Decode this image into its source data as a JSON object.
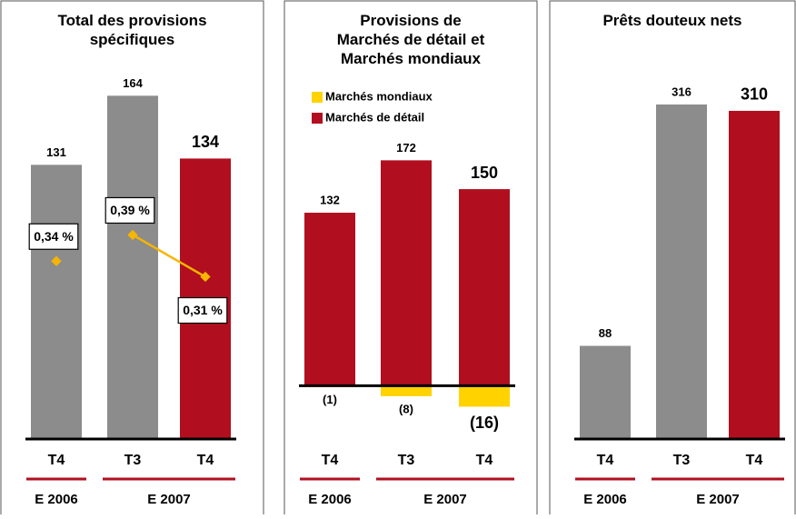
{
  "chart_data": [
    {
      "type": "bar",
      "title": "Total des provisions spécifiques",
      "categories": [
        "T4",
        "T3",
        "T4"
      ],
      "groups": [
        {
          "name": "E 2006",
          "size": 1
        },
        {
          "name": "E 2007",
          "size": 2
        }
      ],
      "values": [
        131,
        164,
        134
      ],
      "colors": [
        "#8c8c8c",
        "#8c8c8c",
        "#b10f1f"
      ],
      "ylim": [
        0,
        175
      ],
      "line": {
        "values": [
          0.34,
          0.39,
          0.31
        ],
        "value_labels": [
          "0,34 %",
          "0,39 %",
          "0,31 %"
        ],
        "color": "#f7b500",
        "axis": "y2"
      },
      "y2lim": [
        0,
        0.7
      ]
    },
    {
      "type": "stacked_bar",
      "title": "Provisions de Marchés de détail et Marchés mondiaux",
      "categories": [
        "T4",
        "T3",
        "T4"
      ],
      "groups": [
        {
          "name": "E 2006",
          "size": 1
        },
        {
          "name": "E 2007",
          "size": 2
        }
      ],
      "series": [
        {
          "name": "Marchés mondiaux",
          "color": "#ffd200",
          "values": [
            -1,
            -8,
            -16
          ],
          "value_labels": [
            "(1)",
            "(8)",
            "(16)"
          ]
        },
        {
          "name": "Marchés de détail",
          "color": "#b10f1f",
          "values": [
            132,
            172,
            150
          ]
        }
      ],
      "ylim": [
        -40,
        200
      ]
    },
    {
      "type": "bar",
      "title": "Prêts douteux nets",
      "categories": [
        "T4",
        "T3",
        "T4"
      ],
      "groups": [
        {
          "name": "E 2006",
          "size": 1
        },
        {
          "name": "E 2007",
          "size": 2
        }
      ],
      "values": [
        88,
        316,
        310
      ],
      "colors": [
        "#8c8c8c",
        "#8c8c8c",
        "#b10f1f"
      ],
      "ylim": [
        0,
        340
      ]
    }
  ]
}
